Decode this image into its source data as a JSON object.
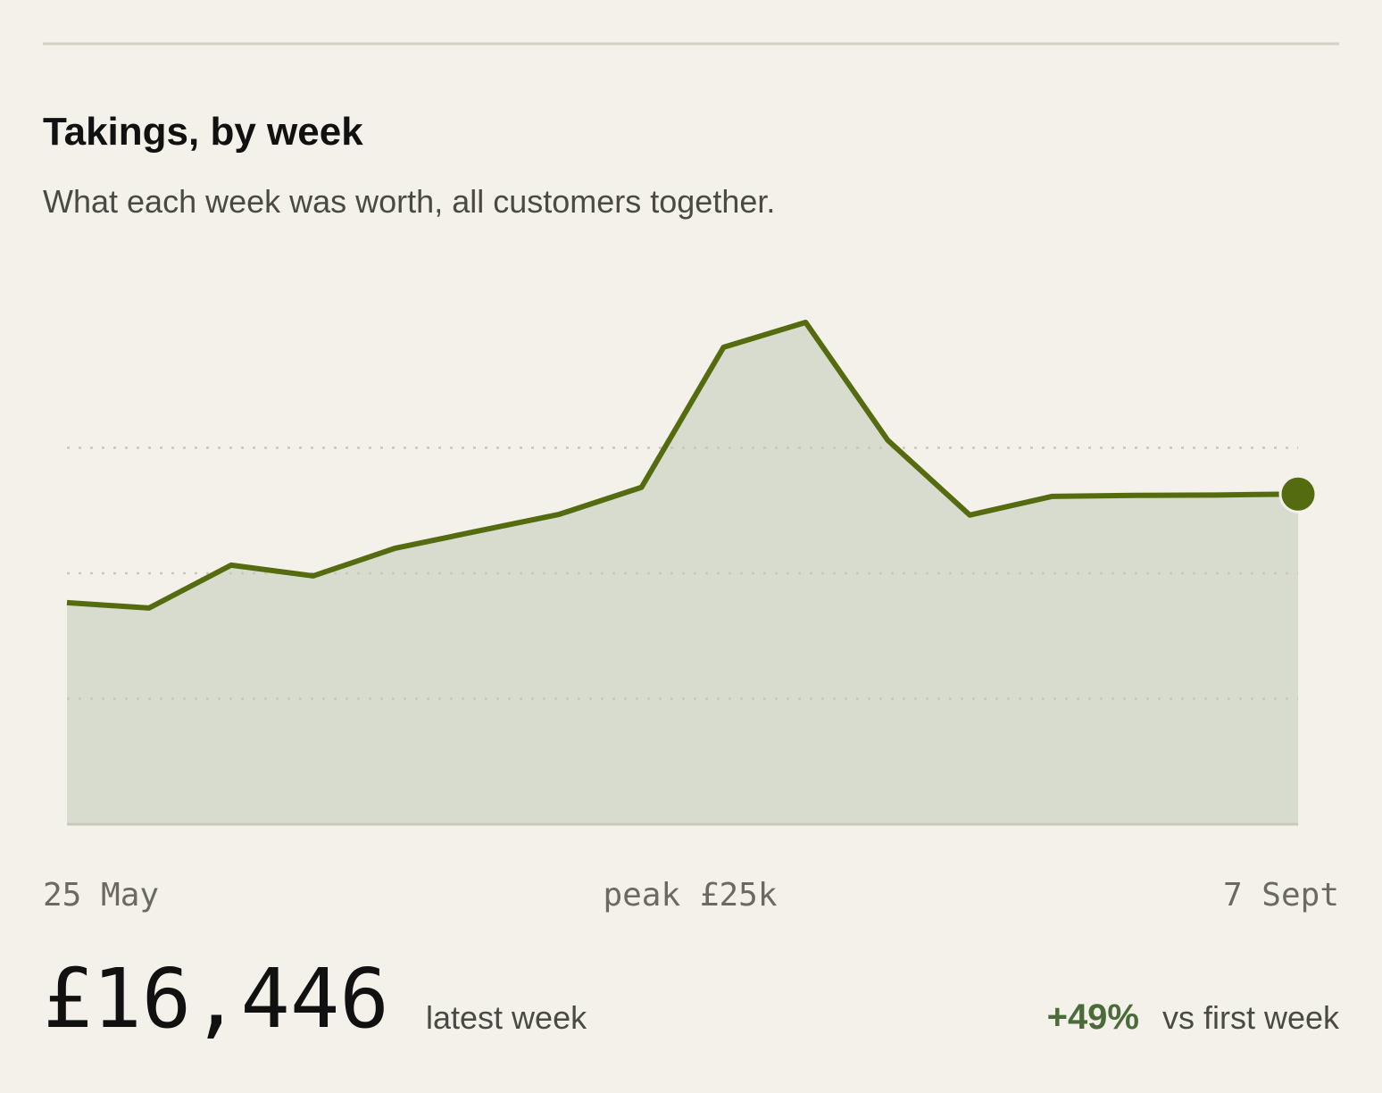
{
  "chart_data": {
    "type": "area",
    "title": "Takings, by week",
    "subtitle": "What each week was worth, all customers together.",
    "categories": [
      "25 May",
      null,
      null,
      null,
      null,
      null,
      null,
      null,
      null,
      null,
      null,
      null,
      null,
      null,
      null,
      "7 Sept"
    ],
    "values": [
      11038,
      10770,
      12905,
      12370,
      13750,
      14600,
      15440,
      16780,
      23760,
      25000,
      19130,
      15400,
      16330,
      16380,
      16400,
      16446
    ],
    "value_labels": [
      null,
      null,
      null,
      null,
      null,
      null,
      null,
      null,
      null,
      null,
      null,
      null,
      null,
      null,
      null,
      "£16,446"
    ],
    "latest_caption": "latest week",
    "peak_annotation": "peak £25k",
    "change": {
      "label": "+49%",
      "caption": "vs first week"
    },
    "color": "#556b0f",
    "fill": "#d7dccf",
    "ylim": [
      0,
      25000
    ],
    "yticks": [
      6250,
      12500,
      18750
    ],
    "grid": true
  }
}
